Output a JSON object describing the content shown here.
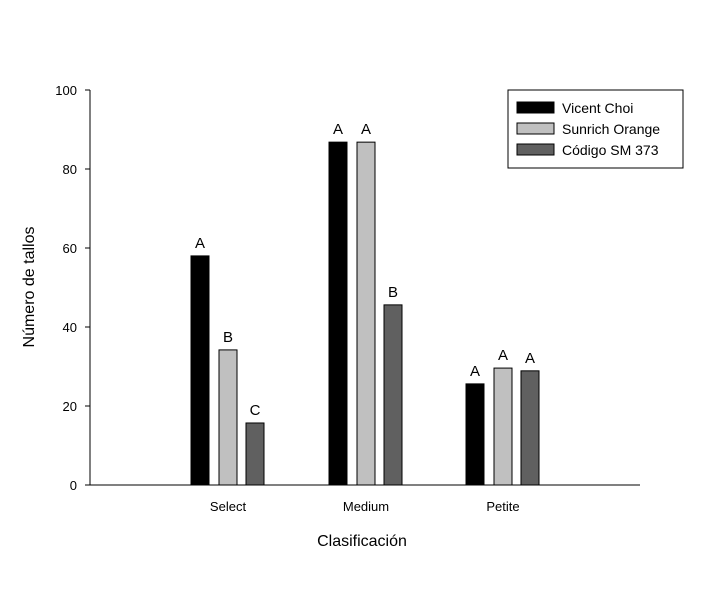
{
  "chart_data": {
    "type": "bar",
    "title": "",
    "xlabel": "Clasificación",
    "ylabel": "Número de tallos",
    "ylim": [
      0,
      100
    ],
    "yticks": [
      0,
      20,
      40,
      60,
      80,
      100
    ],
    "categories": [
      "Select",
      "Medium",
      "Petite"
    ],
    "grid": false,
    "legend_position": "top-right",
    "series": [
      {
        "name": "Vicent Choi",
        "color": "#000000",
        "values": [
          58.0,
          86.8,
          25.6
        ],
        "labels": [
          "A",
          "A",
          "A"
        ]
      },
      {
        "name": "Sunrich Orange",
        "color": "#c0c0c0",
        "values": [
          34.2,
          86.8,
          29.6
        ],
        "labels": [
          "B",
          "A",
          "A"
        ]
      },
      {
        "name": "Código SM 373",
        "color": "#606060",
        "values": [
          15.7,
          45.6,
          28.9
        ],
        "labels": [
          "C",
          "B",
          "A"
        ]
      }
    ]
  }
}
